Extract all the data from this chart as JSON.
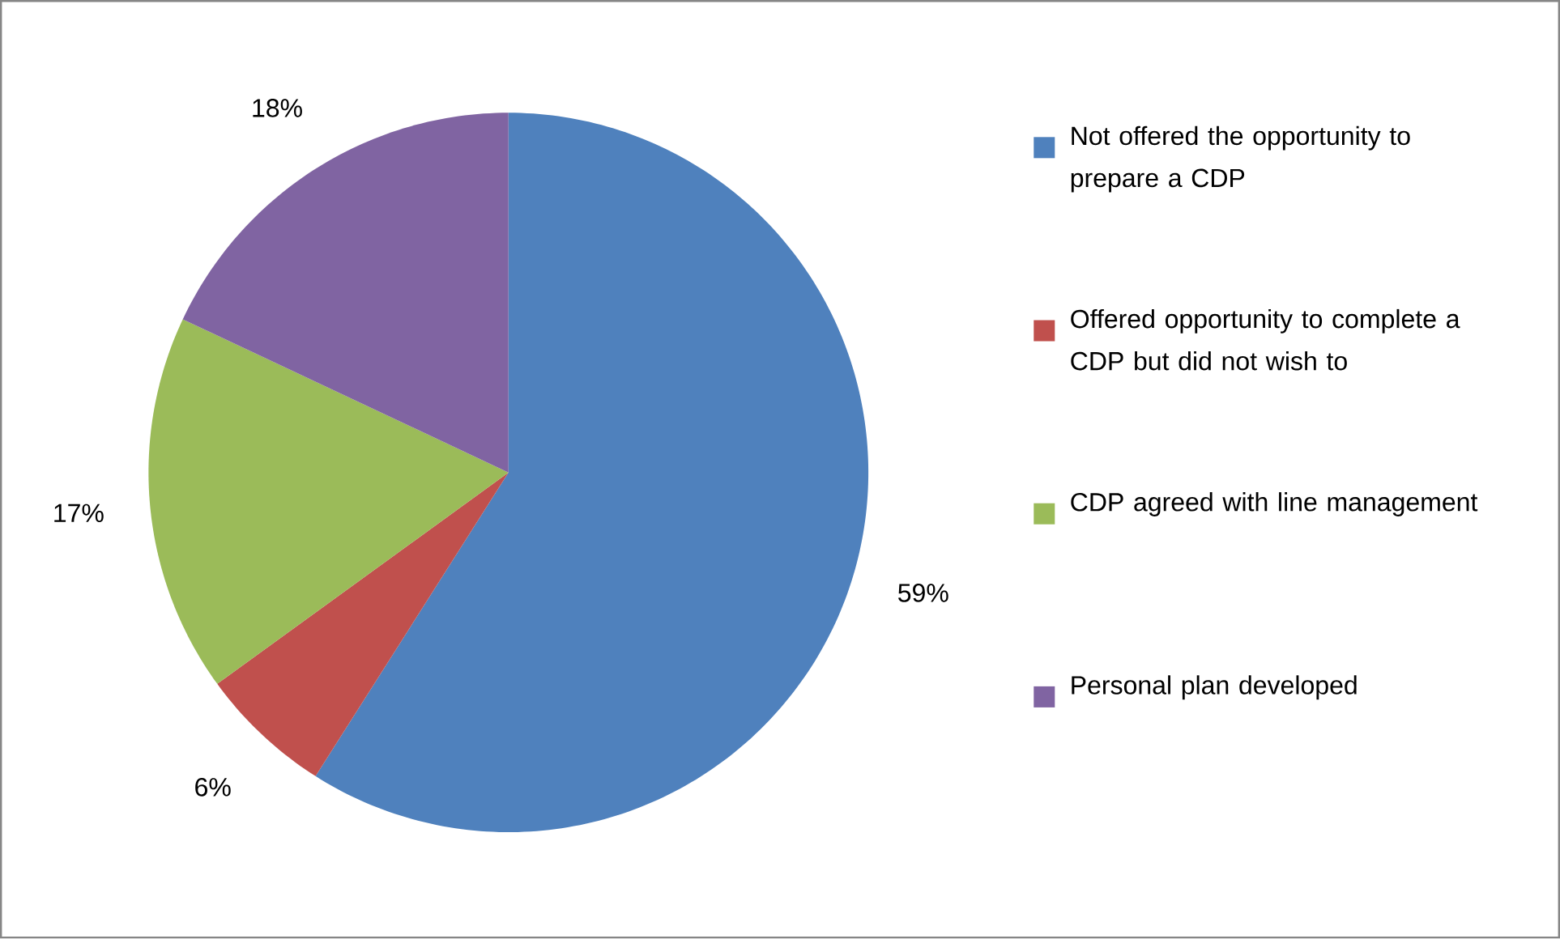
{
  "chart_data": {
    "type": "pie",
    "categories": [
      "Not offered the opportunity to prepare a CDP",
      "Offered opportunity to complete a CDP but did not wish to",
      "CDP agreed with line management",
      "Personal plan developed"
    ],
    "values": [
      59,
      6,
      17,
      18
    ],
    "value_labels": [
      "59%",
      "6%",
      "17%",
      "18%"
    ],
    "colors": [
      "#4f81bd",
      "#c0504d",
      "#9bbb59",
      "#8064a2"
    ],
    "legend": "right"
  }
}
